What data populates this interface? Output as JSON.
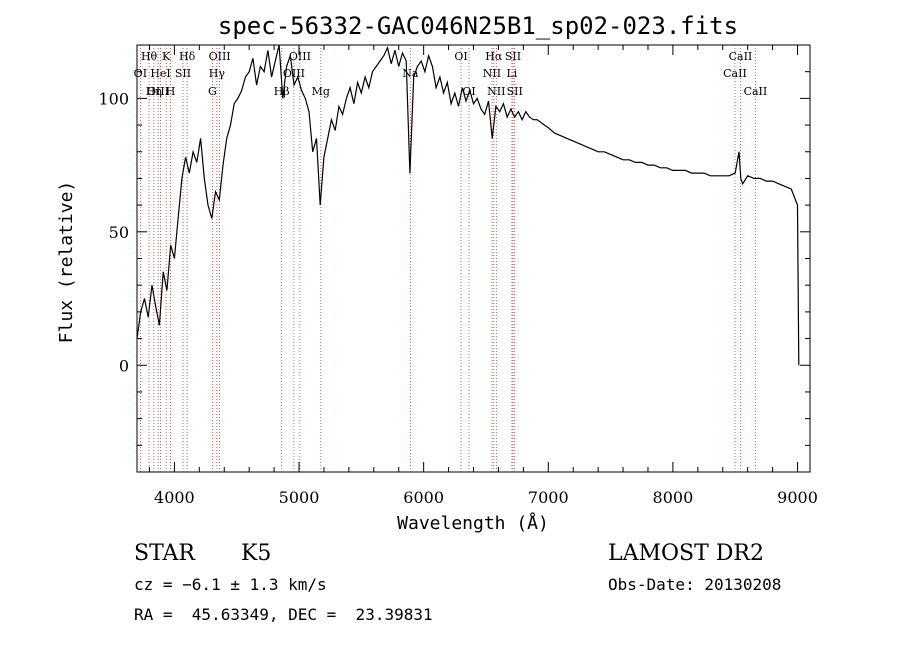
{
  "chart_data": {
    "type": "line",
    "title": "spec-56332-GAC046N25B1_sp02-023.fits",
    "xlabel": "Wavelength (Å)",
    "ylabel": "Flux (relative)",
    "xlim": [
      3700,
      9100
    ],
    "ylim": [
      -40,
      120
    ],
    "x_ticks": [
      4000,
      5000,
      6000,
      7000,
      8000,
      9000
    ],
    "x_tick_labels": [
      "4000",
      "5000",
      "6000",
      "7000",
      "8000",
      "9000"
    ],
    "y_ticks": [
      0,
      50,
      100
    ],
    "y_tick_labels": [
      "0",
      "50",
      "100"
    ],
    "grid": false,
    "series": [
      {
        "x": [
          3700,
          3730,
          3760,
          3790,
          3820,
          3850,
          3880,
          3910,
          3940,
          3970,
          4000,
          4030,
          4060,
          4090,
          4120,
          4150,
          4180,
          4210,
          4240,
          4270,
          4300,
          4330,
          4360,
          4390,
          4420,
          4450,
          4480,
          4510,
          4540,
          4570,
          4600,
          4630,
          4660,
          4690,
          4720,
          4750,
          4780,
          4810,
          4840,
          4870,
          4900,
          4930,
          4960,
          4990,
          5020,
          5050,
          5080,
          5110,
          5140,
          5170,
          5200,
          5230,
          5260,
          5290,
          5320,
          5350,
          5380,
          5410,
          5440,
          5470,
          5500,
          5530,
          5560,
          5590,
          5620,
          5650,
          5680,
          5710,
          5740,
          5770,
          5800,
          5830,
          5860,
          5890,
          5920,
          5950,
          5980,
          6010,
          6040,
          6070,
          6100,
          6130,
          6160,
          6190,
          6220,
          6250,
          6280,
          6310,
          6340,
          6370,
          6400,
          6430,
          6460,
          6490,
          6520,
          6550,
          6580,
          6610,
          6640,
          6670,
          6700,
          6730,
          6760,
          6790,
          6820,
          6850,
          6880,
          6910,
          6940,
          6970,
          7000,
          7050,
          7100,
          7150,
          7200,
          7250,
          7300,
          7350,
          7400,
          7450,
          7500,
          7550,
          7600,
          7650,
          7700,
          7750,
          7800,
          7850,
          7900,
          7950,
          8000,
          8050,
          8100,
          8150,
          8200,
          8250,
          8300,
          8350,
          8400,
          8450,
          8500,
          8530,
          8545,
          8560,
          8600,
          8650,
          8700,
          8750,
          8800,
          8850,
          8900,
          8950,
          9000,
          9010
        ],
        "y": [
          10,
          20,
          25,
          18,
          30,
          22,
          15,
          35,
          28,
          45,
          40,
          55,
          70,
          78,
          72,
          80,
          76,
          85,
          70,
          60,
          55,
          65,
          62,
          75,
          85,
          90,
          98,
          100,
          103,
          108,
          110,
          115,
          105,
          112,
          110,
          118,
          108,
          114,
          120,
          100,
          112,
          116,
          105,
          108,
          103,
          100,
          95,
          80,
          85,
          60,
          78,
          85,
          92,
          88,
          97,
          94,
          100,
          104,
          98,
          106,
          102,
          108,
          104,
          110,
          112,
          114,
          116,
          119,
          113,
          118,
          112,
          117,
          114,
          72,
          108,
          112,
          114,
          110,
          116,
          112,
          104,
          108,
          102,
          106,
          98,
          102,
          97,
          104,
          99,
          103,
          98,
          100,
          96,
          94,
          99,
          85,
          97,
          95,
          98,
          93,
          96,
          93,
          95,
          92,
          95,
          93,
          92,
          92,
          91,
          90,
          89,
          87,
          86,
          85,
          84,
          83,
          82,
          81,
          80,
          80,
          79,
          78,
          77,
          77,
          76,
          76,
          75,
          75,
          74,
          74,
          73,
          73,
          73,
          72,
          72,
          72,
          71,
          71,
          71,
          71,
          72,
          80,
          70,
          68,
          71,
          70,
          70,
          69,
          69,
          68,
          67,
          66,
          60,
          0
        ]
      }
    ],
    "line_markers": [
      {
        "label": "Hθ",
        "x": 3797,
        "row": 0
      },
      {
        "label": "K",
        "x": 3934,
        "row": 0
      },
      {
        "label": "Hδ",
        "x": 4102,
        "row": 0
      },
      {
        "label": "OI",
        "x": 3727,
        "row": 1
      },
      {
        "label": "HeI",
        "x": 3889,
        "row": 1
      },
      {
        "label": "SII",
        "x": 4069,
        "row": 1
      },
      {
        "label": "OIII",
        "x": 3869,
        "row": 2
      },
      {
        "label": "Hη",
        "x": 3835,
        "row": 2
      },
      {
        "label": "H",
        "x": 3969,
        "row": 2
      },
      {
        "label": "OIII",
        "x": 4363,
        "row": 0
      },
      {
        "label": "Hγ",
        "x": 4341,
        "row": 1
      },
      {
        "label": "G",
        "x": 4305,
        "row": 2
      },
      {
        "label": "OIII",
        "x": 5007,
        "row": 0
      },
      {
        "label": "OIII",
        "x": 4959,
        "row": 1
      },
      {
        "label": "Hβ",
        "x": 4861,
        "row": 2
      },
      {
        "label": "Mg",
        "x": 5175,
        "row": 2
      },
      {
        "label": "Na",
        "x": 5893,
        "row": 1
      },
      {
        "label": "OI",
        "x": 6300,
        "row": 0
      },
      {
        "label": "OI",
        "x": 6364,
        "row": 2
      },
      {
        "label": "Hα",
        "x": 6563,
        "row": 0
      },
      {
        "label": "SII",
        "x": 6717,
        "row": 0
      },
      {
        "label": "NII",
        "x": 6548,
        "row": 1
      },
      {
        "label": "Li",
        "x": 6708,
        "row": 1
      },
      {
        "label": "NII",
        "x": 6583,
        "row": 2
      },
      {
        "label": "SII",
        "x": 6731,
        "row": 2
      },
      {
        "label": "CaII",
        "x": 8542,
        "row": 0
      },
      {
        "label": "CaII",
        "x": 8498,
        "row": 1
      },
      {
        "label": "CaII",
        "x": 8662,
        "row": 2
      }
    ]
  },
  "info": {
    "class": "STAR",
    "subclass": "K5",
    "survey": "LAMOST DR2",
    "cz": "cz = −6.1 ± 1.3 km/s",
    "obs_date": "Obs-Date: 20130208",
    "radec": "RA =  45.63349, DEC =  23.39831"
  }
}
